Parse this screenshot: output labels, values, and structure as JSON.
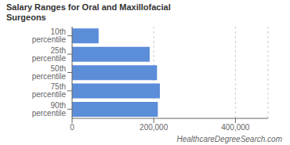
{
  "chart_data": {
    "type": "bar",
    "orientation": "horizontal",
    "title": "Salary Ranges for Oral and Maxillofacial\nSurgeons",
    "categories": [
      "10th percentile",
      "25th percentile",
      "50th percentile",
      "75th percentile",
      "90th percentile"
    ],
    "values": [
      65000,
      190000,
      208000,
      215000,
      210000
    ],
    "color": "#5b8dd9",
    "xlim": [
      0,
      480000
    ],
    "xticks": [
      0,
      {
        "value": 200000,
        "label": "200,000"
      },
      {
        "value": 400000,
        "label": "400,000"
      }
    ],
    "grid": true,
    "annotations": [
      "HealthcareDegreeSearch.com"
    ]
  }
}
